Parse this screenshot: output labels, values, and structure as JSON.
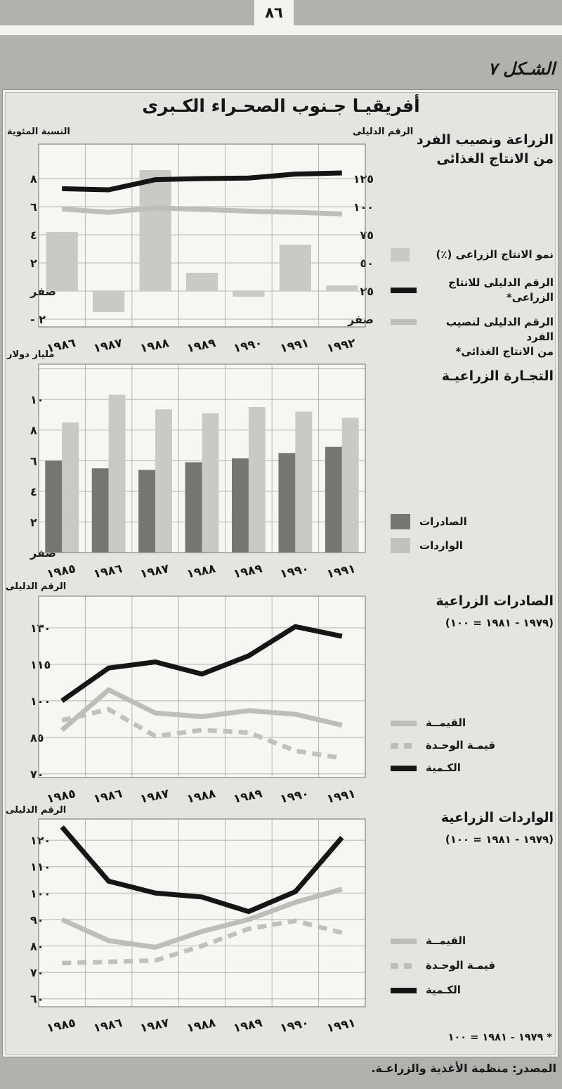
{
  "page": {
    "number": "٨٦",
    "figure_label": "الشـكل ٧",
    "main_title": "أفريقيـا جـنوب الصحـراء الكـبرى",
    "footnote": "* ١٩٧٩ - ١٩٨١ = ١٠٠",
    "source": "المصدر: منظمة الأغذية والزراعـة."
  },
  "colors": {
    "page_bg": "#b2b1ad",
    "band": "#f4f3ef",
    "panel_bg": "#e5e4e0",
    "plot_bg": "#f7f6f2",
    "grid": "#b5b4b0",
    "border": "#8f8e8a",
    "black_line": "#151515",
    "gray_line": "#bebdb9",
    "dashed_line": "#c1c0bc",
    "bar_light": "#cac9c5",
    "bar_dark": "#76756f"
  },
  "chart_data": [
    {
      "type": "bar+line",
      "title1": "الزراعة ونصيب الفرد",
      "title2": "من الانتاج الغذائى",
      "axis_left_label": "النسبة المئوية",
      "axis_right_label": "الرقم الدليلى",
      "categories": [
        "١٩٨٦",
        "١٩٨٧",
        "١٩٨٨",
        "١٩٨٩",
        "١٩٩٠",
        "١٩٩١",
        "١٩٩٢"
      ],
      "axis_left": {
        "min": -2.55,
        "max": 10.45,
        "ticks": [
          {
            "v": 8,
            "t": "٨"
          },
          {
            "v": 6,
            "t": "٦"
          },
          {
            "v": 4,
            "t": "٤"
          },
          {
            "v": 2,
            "t": "٢"
          },
          {
            "v": 0,
            "t": "صفر"
          },
          {
            "v": -2,
            "t": "٢ -"
          }
        ]
      },
      "axis_right": {
        "min": -6.875,
        "max": 155.625,
        "ticks": [
          {
            "v": 125,
            "t": "١٢٥"
          },
          {
            "v": 100,
            "t": "١٠٠"
          },
          {
            "v": 75,
            "t": "٧٥"
          },
          {
            "v": 50,
            "t": "٥٠"
          },
          {
            "v": 25,
            "t": "٢٥"
          },
          {
            "v": 0,
            "t": "صفر"
          }
        ]
      },
      "bars": [
        {
          "name": "نمو الانتاج الزراعى (٪)",
          "style": "light",
          "axis": "left",
          "values": [
            4.2,
            -1.5,
            8.6,
            1.3,
            -0.4,
            3.3,
            0.4
          ]
        }
      ],
      "lines": [
        {
          "name": "الرقم الدليلى للانتاج الزراعى*",
          "style": "black",
          "axis": "right",
          "values": [
            116,
            115,
            124,
            125,
            125.5,
            129,
            130
          ]
        },
        {
          "name": "الرقم الدليلى لنصيب الفرد",
          "name2": "من الانتاج الغذائى*",
          "style": "gray",
          "axis": "right",
          "values": [
            98,
            95,
            99,
            97.5,
            96,
            95,
            93.5
          ]
        }
      ]
    },
    {
      "type": "bar",
      "title": "التجـارة الزراعيـة",
      "axis_left_label": "مليار دولار",
      "categories": [
        "١٩٨٥",
        "١٩٨٦",
        "١٩٨٧",
        "١٩٨٨",
        "١٩٨٩",
        "١٩٩٠",
        "١٩٩١"
      ],
      "axis_left": {
        "min": 0,
        "max": 12.3,
        "ticks": [
          {
            "v": 12,
            "t": ""
          },
          {
            "v": 10,
            "t": "١٠"
          },
          {
            "v": 8,
            "t": "٨"
          },
          {
            "v": 6,
            "t": "٦"
          },
          {
            "v": 4,
            "t": "٤"
          },
          {
            "v": 2,
            "t": "٢"
          },
          {
            "v": 0,
            "t": "صفر"
          }
        ]
      },
      "bars": [
        {
          "name": "الصادرات",
          "style": "dark",
          "axis": "left",
          "values": [
            6.0,
            5.5,
            5.4,
            5.9,
            6.15,
            6.5,
            6.9
          ]
        },
        {
          "name": "الواردات",
          "style": "light",
          "axis": "left",
          "values": [
            8.5,
            10.3,
            9.35,
            9.1,
            9.5,
            9.2,
            8.8
          ]
        }
      ],
      "lines": []
    },
    {
      "type": "line",
      "title": "الصادرات الزراعية",
      "subtitle": "(١٩٧٩ - ١٩٨١ = ١٠٠)",
      "axis_left_label": "الرقم الدليلى",
      "categories": [
        "١٩٨٥",
        "١٩٨٦",
        "١٩٨٧",
        "١٩٨٨",
        "١٩٨٩",
        "١٩٩٠",
        "١٩٩١"
      ],
      "axis_left": {
        "min": 68.5,
        "max": 143,
        "ticks": [
          {
            "v": 130,
            "t": "١٣٠"
          },
          {
            "v": 115,
            "t": "١١٥"
          },
          {
            "v": 100,
            "t": "١٠٠"
          },
          {
            "v": 85,
            "t": "٨٥"
          },
          {
            "v": 70,
            "t": "٧٠"
          }
        ]
      },
      "bars": [],
      "lines": [
        {
          "name": "القيمــة",
          "style": "gray",
          "axis": "left",
          "values": [
            88,
            104.5,
            95,
            93.5,
            96,
            94.5,
            90
          ]
        },
        {
          "name": "قيمـة الوحـدة",
          "style": "dashed",
          "axis": "left",
          "values": [
            92,
            96.5,
            85.5,
            88,
            87,
            79.5,
            76.5
          ]
        },
        {
          "name": "الكـمية",
          "style": "black",
          "axis": "left",
          "values": [
            100,
            113.5,
            116,
            111,
            118.5,
            130.5,
            126.5
          ]
        }
      ]
    },
    {
      "type": "line",
      "title": "الواردات الزراعية",
      "subtitle": "(١٩٧٩ - ١٩٨١ = ١٠٠)",
      "axis_left_label": "الرقم الدليلى",
      "categories": [
        "١٩٨٥",
        "١٩٨٦",
        "١٩٨٧",
        "١٩٨٨",
        "١٩٨٩",
        "١٩٩٠",
        "١٩٩١"
      ],
      "axis_left": {
        "min": 57,
        "max": 128,
        "ticks": [
          {
            "v": 120,
            "t": "١٢٠"
          },
          {
            "v": 110,
            "t": "١١٠"
          },
          {
            "v": 100,
            "t": "١٠٠"
          },
          {
            "v": 90,
            "t": "٩٠"
          },
          {
            "v": 80,
            "t": "٨٠"
          },
          {
            "v": 70,
            "t": "٧٠"
          },
          {
            "v": 60,
            "t": "٦٠"
          }
        ]
      },
      "bars": [],
      "lines": [
        {
          "name": "القيمــة",
          "style": "gray",
          "axis": "left",
          "values": [
            90,
            82,
            79.5,
            85.5,
            90,
            96.5,
            101.5
          ]
        },
        {
          "name": "قيمـة الوحـدة",
          "style": "dashed",
          "axis": "left",
          "values": [
            73.5,
            74,
            74.5,
            80,
            86.5,
            89.5,
            85
          ]
        },
        {
          "name": "الكـمية",
          "style": "black",
          "axis": "left",
          "values": [
            125,
            104.5,
            100,
            98.5,
            93,
            100.5,
            121
          ]
        }
      ]
    }
  ]
}
